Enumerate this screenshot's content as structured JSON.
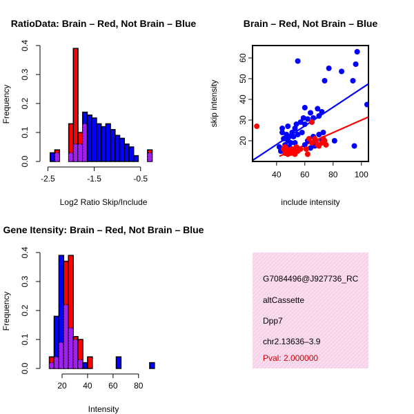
{
  "colors": {
    "brain": "#ff0000",
    "notbrain": "#0000ff",
    "overlap": "#a020f0",
    "info_bg": "#f8d8ec",
    "pval": "#cc0000"
  },
  "chart_data": [
    {
      "id": "ratio",
      "type": "bar",
      "title": "RatioData: Brain – Red, Not Brain – Blue",
      "xlabel": "Log2 Ratio Skip/Include",
      "ylabel": "Frequency",
      "xlim": [
        -2.55,
        -0.05
      ],
      "ylim": [
        0,
        0.4
      ],
      "xticks": [
        -2.5,
        -1.5,
        -0.5
      ],
      "xtick_labels": [
        "-2.5",
        "-1.5",
        "-0.5"
      ],
      "yticks": [
        0.0,
        0.1,
        0.2,
        0.3,
        0.4
      ],
      "ytick_labels": [
        "0.0",
        "0.1",
        "0.2",
        "0.3",
        "0.4"
      ],
      "bin_edges": [
        -2.45,
        -2.35,
        -2.25,
        -2.15,
        -2.05,
        -1.95,
        -1.85,
        -1.75,
        -1.65,
        -1.55,
        -1.45,
        -1.35,
        -1.25,
        -1.15,
        -1.05,
        -0.95,
        -0.85,
        -0.75,
        -0.65,
        -0.55,
        -0.45,
        -0.35,
        -0.25,
        -0.15
      ],
      "series": [
        {
          "name": "Brain",
          "color": "red",
          "values": [
            0,
            0.04,
            0,
            0,
            0.13,
            0.39,
            0.1,
            0.13,
            0,
            0,
            0,
            0,
            0,
            0,
            0,
            0,
            0,
            0,
            0,
            0,
            0,
            0.04
          ]
        },
        {
          "name": "Not Brain",
          "color": "blue",
          "values": [
            0.03,
            0.03,
            0,
            0,
            0.03,
            0.06,
            0.06,
            0.17,
            0.16,
            0.15,
            0.13,
            0.12,
            0.13,
            0.11,
            0.09,
            0.08,
            0.06,
            0.05,
            0.02,
            0,
            0,
            0.03
          ]
        }
      ]
    },
    {
      "id": "scatter",
      "type": "scatter",
      "title": "Brain – Red, Not Brain – Blue",
      "xlabel": "include intensity",
      "ylabel": "skip intensity",
      "xlim": [
        23,
        105
      ],
      "ylim": [
        10,
        66
      ],
      "xticks": [
        40,
        60,
        80,
        100
      ],
      "xtick_labels": [
        "40",
        "60",
        "80",
        "100"
      ],
      "yticks": [
        20,
        30,
        40,
        50,
        60
      ],
      "ytick_labels": [
        "20",
        "30",
        "40",
        "50",
        "60"
      ],
      "series": [
        {
          "name": "Not Brain",
          "color": "blue",
          "points": [
            [
              55,
              58.5
            ],
            [
              97,
              63
            ],
            [
              96,
              57
            ],
            [
              104,
              37.5
            ],
            [
              77,
              55
            ],
            [
              86,
              53.5
            ],
            [
              94,
              49
            ],
            [
              74,
              49
            ],
            [
              60,
              36
            ],
            [
              64,
              33.5
            ],
            [
              69,
              35.5
            ],
            [
              72,
              34
            ],
            [
              62,
              30.5
            ],
            [
              66,
              31
            ],
            [
              70,
              32
            ],
            [
              59,
              31
            ],
            [
              54,
              28
            ],
            [
              57,
              29
            ],
            [
              60,
              28
            ],
            [
              44,
              26
            ],
            [
              48,
              27
            ],
            [
              51,
              24
            ],
            [
              53,
              26
            ],
            [
              44,
              24
            ],
            [
              47,
              23
            ],
            [
              49,
              22
            ],
            [
              52,
              22
            ],
            [
              55,
              23
            ],
            [
              58,
              24
            ],
            [
              45,
              21
            ],
            [
              48,
              20
            ],
            [
              50,
              19
            ],
            [
              53,
              19
            ],
            [
              62,
              20
            ],
            [
              66,
              22
            ],
            [
              70,
              23
            ],
            [
              73,
              24
            ],
            [
              72,
              20
            ],
            [
              60,
              18
            ],
            [
              64,
              16.5
            ],
            [
              67,
              17.5
            ],
            [
              81,
              20
            ],
            [
              95,
              17.5
            ],
            [
              42,
              17
            ],
            [
              46,
              18
            ],
            [
              49,
              17
            ],
            [
              56,
              16
            ],
            [
              43,
              15
            ],
            [
              52,
              14
            ]
          ]
        },
        {
          "name": "Brain",
          "color": "red",
          "points": [
            [
              26,
              27
            ],
            [
              45,
              16
            ],
            [
              46,
              14
            ],
            [
              47,
              15
            ],
            [
              48,
              13.5
            ],
            [
              49,
              15.5
            ],
            [
              50,
              14
            ],
            [
              51,
              16
            ],
            [
              53,
              13.5
            ],
            [
              55,
              15
            ],
            [
              61,
              16
            ],
            [
              62,
              13.5
            ],
            [
              63,
              21
            ],
            [
              65,
              19
            ],
            [
              67,
              21
            ],
            [
              68,
              20
            ],
            [
              69,
              18
            ],
            [
              70,
              17.5
            ],
            [
              72,
              19
            ],
            [
              73,
              21
            ],
            [
              74,
              20
            ],
            [
              75,
              18
            ],
            [
              54,
              17
            ],
            [
              57,
              16
            ],
            [
              65,
              29
            ],
            [
              46,
              17
            ],
            [
              52,
              15
            ]
          ]
        }
      ],
      "fit_lines": [
        {
          "name": "Not Brain fit",
          "color": "blue",
          "x": [
            23,
            105
          ],
          "y": [
            10.5,
            47.5
          ]
        },
        {
          "name": "Brain fit",
          "color": "red",
          "x": [
            42,
            105
          ],
          "y": [
            12.5,
            31.5
          ]
        }
      ]
    },
    {
      "id": "intensity",
      "type": "bar",
      "title": "Gene Itensity: Brain – Red, Not Brain – Blue",
      "xlabel": "Intensity",
      "ylabel": "Frequency",
      "xlim": [
        7,
        98
      ],
      "ylim": [
        0,
        0.4
      ],
      "xticks": [
        20,
        40,
        60,
        80
      ],
      "xtick_labels": [
        "20",
        "40",
        "60",
        "80"
      ],
      "yticks": [
        0.0,
        0.1,
        0.2,
        0.3,
        0.4
      ],
      "ytick_labels": [
        "0.0",
        "0.1",
        "0.2",
        "0.3",
        "0.4"
      ],
      "bin_edges": [
        10,
        13.75,
        17.5,
        21.25,
        25,
        28.75,
        32.5,
        36.25,
        40,
        43.75,
        47.5,
        51.25,
        55,
        58.75,
        62.5,
        66.25,
        70,
        73.75,
        77.5,
        81.25,
        85,
        88.75,
        92.5,
        96.25
      ],
      "series": [
        {
          "name": "Brain",
          "color": "red",
          "values": [
            0.04,
            0.04,
            0.09,
            0.37,
            0.39,
            0.11,
            0.1,
            0,
            0.04,
            0,
            0,
            0,
            0,
            0,
            0,
            0,
            0,
            0,
            0,
            0,
            0,
            0,
            0
          ]
        },
        {
          "name": "Not Brain",
          "color": "blue",
          "values": [
            0.02,
            0.18,
            0.39,
            0.22,
            0.14,
            0.1,
            0.03,
            0.02,
            0,
            0,
            0,
            0,
            0,
            0,
            0.04,
            0,
            0,
            0,
            0,
            0,
            0,
            0.02,
            0
          ]
        }
      ]
    }
  ],
  "info": {
    "probe": "G7084496@J927736_RC",
    "event_type": "altCassette",
    "gene": "Dpp7",
    "location": "chr2.13636–3.9",
    "pval": "Pval: 2.000000"
  }
}
